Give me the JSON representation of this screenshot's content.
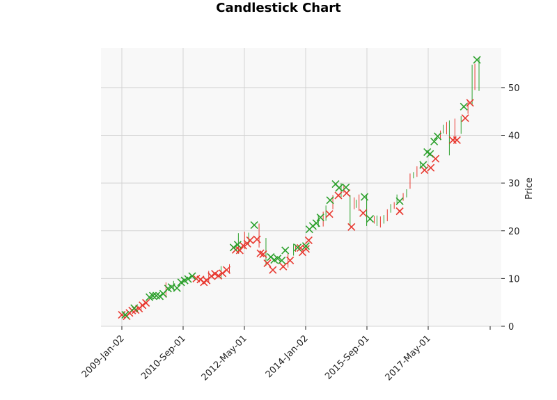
{
  "chart_data": {
    "type": "candlestick",
    "title": "Candlestick Chart",
    "xlabel": "",
    "ylabel": "Price",
    "x_tick_labels": [
      "2009-Jan-02",
      "2010-Sep-01",
      "2012-May-01",
      "2014-Jan-02",
      "2015-Sep-01",
      "2017-May-01"
    ],
    "y_ticks": [
      0,
      10,
      20,
      30,
      40,
      50
    ],
    "ylim": [
      0,
      58
    ],
    "grid": true,
    "colors": {
      "up": "#2ca02c",
      "down": "#e8382f",
      "plot_bg": "#f8f8f8",
      "grid": "#d3d3d3"
    },
    "markers": {
      "up": [
        [
          0.5,
          2.4
        ],
        [
          1.8,
          3.8
        ],
        [
          4.0,
          6.1
        ],
        [
          4.5,
          6.4
        ],
        [
          5.0,
          6.4
        ],
        [
          5.5,
          6.3
        ],
        [
          6.0,
          6.8
        ],
        [
          6.7,
          7.9
        ],
        [
          7.2,
          8.2
        ],
        [
          8.0,
          8.0
        ],
        [
          8.6,
          9.2
        ],
        [
          9.1,
          9.6
        ],
        [
          9.6,
          9.9
        ],
        [
          10.2,
          10.5
        ],
        [
          16.2,
          16.5
        ],
        [
          16.8,
          17.1
        ],
        [
          19.2,
          21.2
        ],
        [
          21.6,
          14.5
        ],
        [
          22.1,
          13.9
        ],
        [
          22.6,
          14.2
        ],
        [
          23.2,
          13.8
        ],
        [
          23.7,
          15.9
        ],
        [
          25.5,
          16.5
        ],
        [
          26.7,
          16.8
        ],
        [
          27.2,
          20.3
        ],
        [
          27.7,
          21.0
        ],
        [
          28.2,
          21.6
        ],
        [
          28.8,
          22.8
        ],
        [
          30.2,
          26.4
        ],
        [
          31.0,
          29.8
        ],
        [
          31.5,
          29.0
        ],
        [
          32.5,
          29.1
        ],
        [
          35.2,
          27.1
        ],
        [
          36.0,
          22.5
        ],
        [
          40.3,
          26.2
        ],
        [
          43.7,
          33.8
        ],
        [
          44.3,
          36.5
        ],
        [
          44.7,
          36.1
        ],
        [
          45.3,
          38.7
        ],
        [
          45.8,
          39.8
        ],
        [
          49.6,
          46.0
        ],
        [
          51.5,
          55.8
        ]
      ],
      "down": [
        [
          0.0,
          2.4
        ],
        [
          0.7,
          2.1
        ],
        [
          1.1,
          2.8
        ],
        [
          1.5,
          3.3
        ],
        [
          2.0,
          3.4
        ],
        [
          2.5,
          3.7
        ],
        [
          3.0,
          4.4
        ],
        [
          3.5,
          4.9
        ],
        [
          10.8,
          10.0
        ],
        [
          11.4,
          9.8
        ],
        [
          11.9,
          9.2
        ],
        [
          12.3,
          9.6
        ],
        [
          13.0,
          10.5
        ],
        [
          13.5,
          11.0
        ],
        [
          14.0,
          10.6
        ],
        [
          14.6,
          11.1
        ],
        [
          15.2,
          11.8
        ],
        [
          16.5,
          16.0
        ],
        [
          17.1,
          15.9
        ],
        [
          17.6,
          16.9
        ],
        [
          18.2,
          17.3
        ],
        [
          18.6,
          18.0
        ],
        [
          19.6,
          18.2
        ],
        [
          20.1,
          15.3
        ],
        [
          20.5,
          15.1
        ],
        [
          21.1,
          13.2
        ],
        [
          21.9,
          11.8
        ],
        [
          23.4,
          12.5
        ],
        [
          24.4,
          13.8
        ],
        [
          25.9,
          16.4
        ],
        [
          26.2,
          15.5
        ],
        [
          26.7,
          16.2
        ],
        [
          27.1,
          18.0
        ],
        [
          30.1,
          23.5
        ],
        [
          31.4,
          27.4
        ],
        [
          32.6,
          27.9
        ],
        [
          33.3,
          20.8
        ],
        [
          35.0,
          23.7
        ],
        [
          40.3,
          24.1
        ],
        [
          43.9,
          32.7
        ],
        [
          44.8,
          33.2
        ],
        [
          45.5,
          35.1
        ],
        [
          48.0,
          39.0
        ],
        [
          48.6,
          39.0
        ],
        [
          49.8,
          43.6
        ],
        [
          50.5,
          46.8
        ]
      ],
      "wicks": [
        [
          0.3,
          2.0,
          3.1
        ],
        [
          2.8,
          3.4,
          4.8
        ],
        [
          4.4,
          5.4,
          7.0
        ],
        [
          6.4,
          6.0,
          9.2
        ],
        [
          7.5,
          7.5,
          9.5
        ],
        [
          12.6,
          9.2,
          11.6
        ],
        [
          14.4,
          10.0,
          12.6
        ],
        [
          15.6,
          11.0,
          13.0
        ],
        [
          16.9,
          15.2,
          19.5
        ],
        [
          17.8,
          16.2,
          19.8
        ],
        [
          18.4,
          17.0,
          19.6
        ],
        [
          19.9,
          16.5,
          21.5
        ],
        [
          20.9,
          12.7,
          18.5
        ],
        [
          24.1,
          12.3,
          15.2
        ],
        [
          24.9,
          14.8,
          17.3
        ],
        [
          25.2,
          15.6,
          16.8
        ],
        [
          28.5,
          20.8,
          23.2
        ],
        [
          29.2,
          20.9,
          24.0
        ],
        [
          29.6,
          22.1,
          25.3
        ],
        [
          30.6,
          24.5,
          27.5
        ],
        [
          31.8,
          27.0,
          30.0
        ],
        [
          32.2,
          28.0,
          29.6
        ],
        [
          33.1,
          21.0,
          27.5
        ],
        [
          33.7,
          24.5,
          27.0
        ],
        [
          34.0,
          24.8,
          26.5
        ],
        [
          34.4,
          24.2,
          27.6
        ],
        [
          35.5,
          21.0,
          27.4
        ],
        [
          36.6,
          21.5,
          23.1
        ],
        [
          37.0,
          21.0,
          23.2
        ],
        [
          37.5,
          20.7,
          23.0
        ],
        [
          38.0,
          21.5,
          23.3
        ],
        [
          38.5,
          22.0,
          24.5
        ],
        [
          39.0,
          23.8,
          25.6
        ],
        [
          39.5,
          24.6,
          26.0
        ],
        [
          39.9,
          25.8,
          27.6
        ],
        [
          40.8,
          26.3,
          27.9
        ],
        [
          41.3,
          27.0,
          28.7
        ],
        [
          41.8,
          28.8,
          32.0
        ],
        [
          42.3,
          31.0,
          32.3
        ],
        [
          42.8,
          31.3,
          33.5
        ],
        [
          43.3,
          33.0,
          34.6
        ],
        [
          46.2,
          39.0,
          41.0
        ],
        [
          46.6,
          40.4,
          42.2
        ],
        [
          47.1,
          40.2,
          42.8
        ],
        [
          47.5,
          35.8,
          43.1
        ],
        [
          48.3,
          38.5,
          43.5
        ],
        [
          49.2,
          40.3,
          44.0
        ],
        [
          50.2,
          44.5,
          47.2
        ],
        [
          50.8,
          46.5,
          54.8
        ],
        [
          51.2,
          49.5,
          55.0
        ],
        [
          51.8,
          49.3,
          56.2
        ]
      ]
    }
  }
}
